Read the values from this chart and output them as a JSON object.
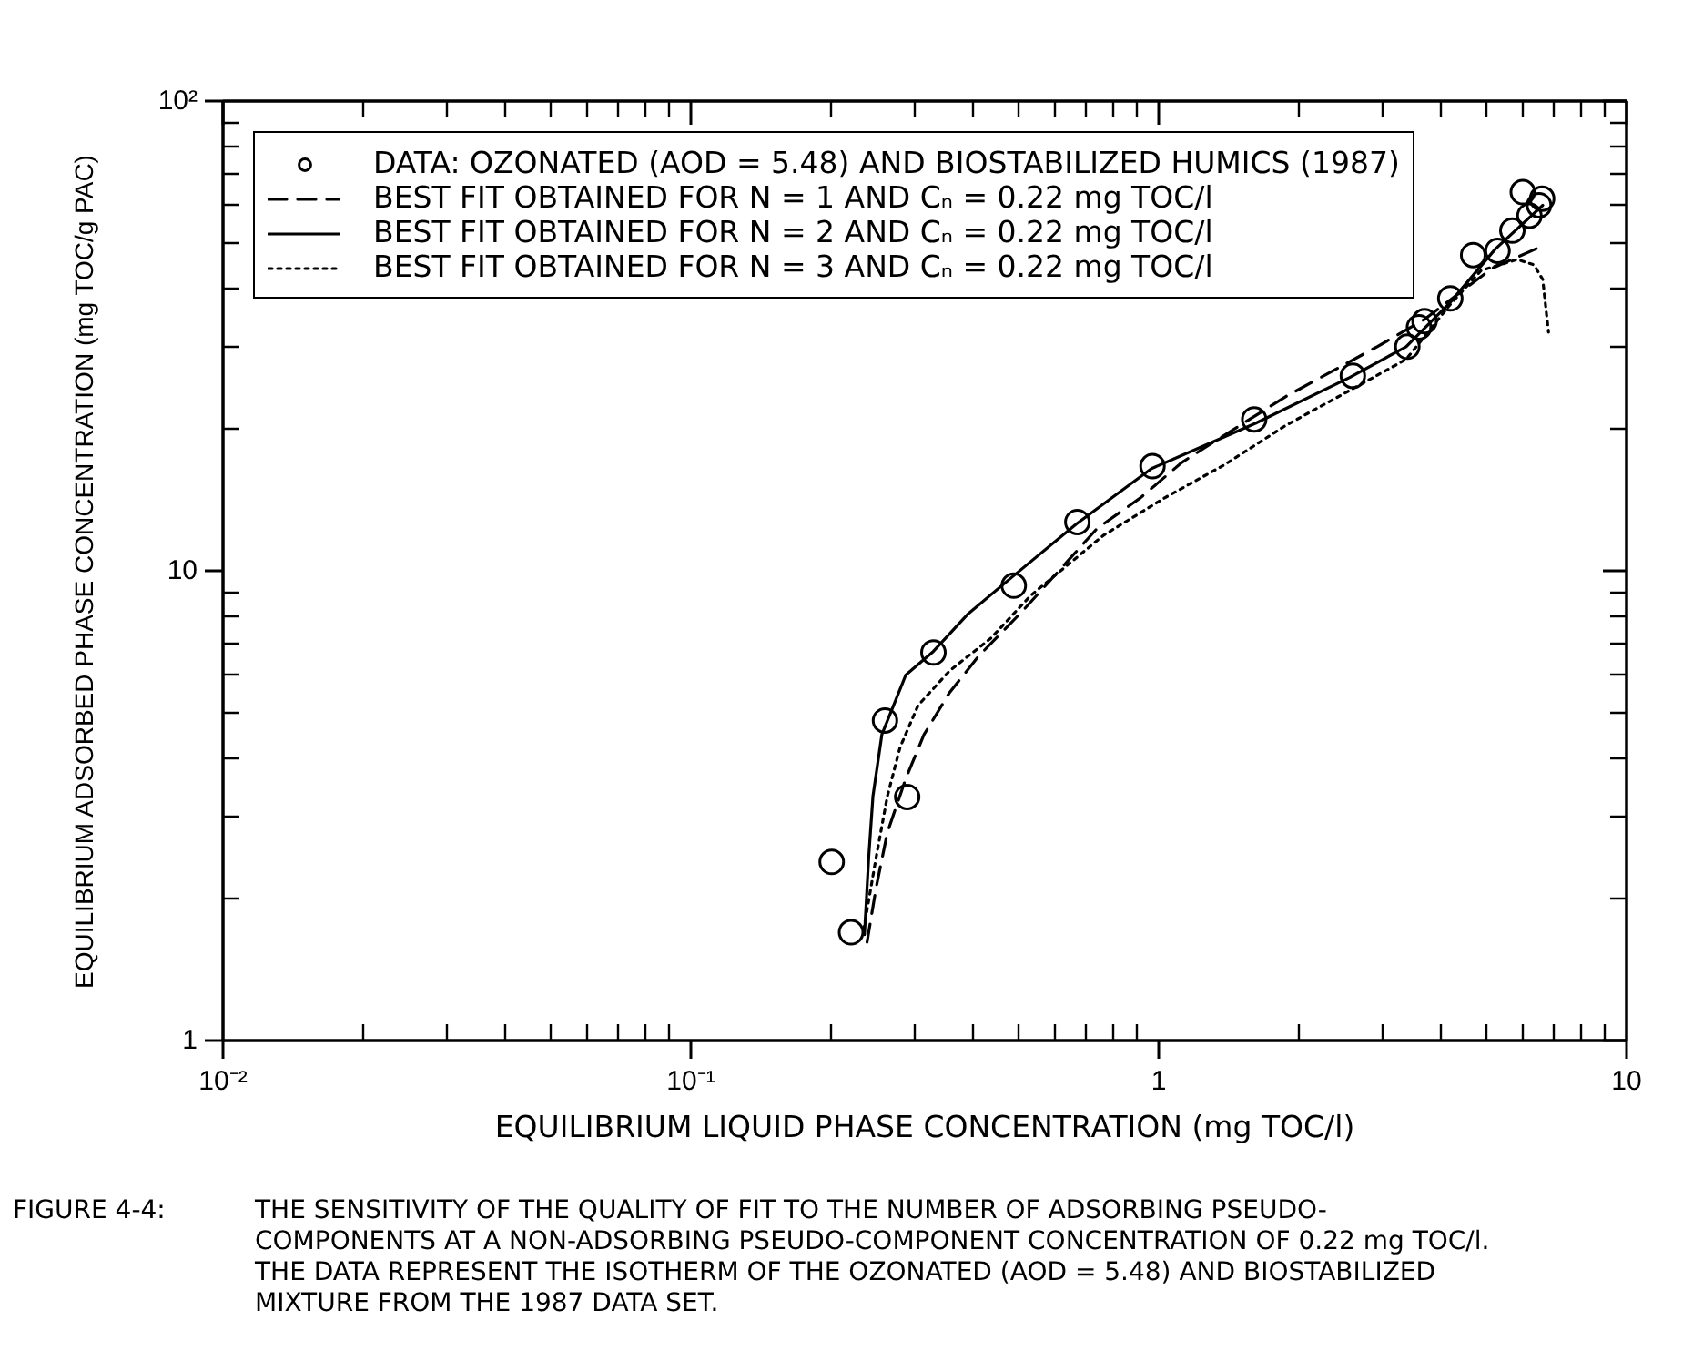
{
  "chart_data": {
    "type": "scatter",
    "xlabel": "EQUILIBRIUM LIQUID PHASE CONCENTRATION (mg TOC/l)",
    "ylabel": "EQUILIBRIUM ADSORBED PHASE CONCENTRATION (mg TOC/g PAC)",
    "log": "xy",
    "xlim": [
      0.01,
      10
    ],
    "ylim": [
      1,
      100
    ],
    "xticks": [
      {
        "value": 0.01,
        "label": "10⁻²"
      },
      {
        "value": 0.1,
        "label": "10⁻¹"
      },
      1,
      10
    ],
    "yticks": [
      1,
      10,
      {
        "value": 100,
        "label": "10²"
      }
    ],
    "grid": false,
    "legend": "top left",
    "series": [
      {
        "name": "DATA: OZONATED (AOD = 5.48) AND BIOSTABILIZED HUMICS (1987)",
        "marker": "circle",
        "color": "#000000",
        "x": [
          0.2,
          0.22,
          0.26,
          0.29,
          0.33,
          0.49,
          0.67,
          0.97,
          1.6,
          2.6,
          3.4,
          3.6,
          3.7,
          4.2,
          4.7,
          5.3,
          5.7,
          6.0,
          6.2,
          6.5,
          6.6
        ],
        "values": [
          2.4,
          1.7,
          4.8,
          3.3,
          6.7,
          9.3,
          12.7,
          16.7,
          21,
          26,
          30,
          33,
          34,
          38,
          47,
          48,
          53,
          64,
          57,
          60,
          62
        ]
      },
      {
        "name": "BEST FIT OBTAINED FOR N = 1 AND Cₙ = 0.22 mg TOC/l",
        "type": "line",
        "line_style": "dashed",
        "color": "#000000",
        "x": [
          0.238,
          0.249,
          0.263,
          0.288,
          0.315,
          0.357,
          0.412,
          0.511,
          0.645,
          0.738,
          0.914,
          1.12,
          1.31,
          1.87,
          2.93,
          3.7,
          5.15,
          6.56
        ],
        "values": [
          1.62,
          2.12,
          2.77,
          3.61,
          4.48,
          5.5,
          6.58,
          8.2,
          10.6,
          12.3,
          14.3,
          17.0,
          18.8,
          23.5,
          30.0,
          34.3,
          44,
          49
        ]
      },
      {
        "name": "BEST FIT OBTAINED FOR N = 2 AND Cₙ = 0.22 mg TOC/l",
        "type": "line",
        "line_style": "solid",
        "color": "#000000",
        "x": [
          0.235,
          0.24,
          0.245,
          0.256,
          0.288,
          0.33,
          0.39,
          0.48,
          0.668,
          0.965,
          1.61,
          2.56,
          3.38,
          4.19,
          5.24,
          6.62
        ],
        "values": [
          1.68,
          2.46,
          3.31,
          4.48,
          6.0,
          6.74,
          8.07,
          9.6,
          12.6,
          16.5,
          20.6,
          25.8,
          30,
          37.2,
          48.4,
          60
        ]
      },
      {
        "name": "BEST FIT OBTAINED FOR N = 3 AND Cₙ = 0.22 mg TOC/l",
        "type": "line",
        "line_style": "dotted",
        "color": "#000000",
        "x": [
          0.234,
          0.249,
          0.263,
          0.28,
          0.306,
          0.357,
          0.438,
          0.532,
          0.762,
          1.03,
          1.38,
          1.87,
          2.52,
          3.38,
          4.19,
          4.89,
          5.84,
          6.34,
          6.62,
          6.81
        ],
        "values": [
          1.72,
          2.46,
          3.31,
          4.21,
          5.17,
          6.12,
          7.19,
          8.85,
          11.9,
          14.3,
          16.8,
          20.4,
          24.0,
          28.2,
          36.8,
          43.6,
          46,
          44.8,
          41.7,
          32.2
        ]
      }
    ],
    "annotations": [
      "FIGURE 4-4:",
      "THE SENSITIVITY OF THE QUALITY OF FIT TO THE NUMBER OF ADSORBING PSEUDO-\nCOMPONENTS AT A NON-ADSORBING PSEUDO-COMPONENT CONCENTRATION OF 0.22 mg TOC/l.\nTHE DATA REPRESENT THE ISOTHERM OF THE OZONATED (AOD = 5.48) AND BIOSTABILIZED\nMIXTURE FROM THE 1987 DATA SET."
    ]
  }
}
